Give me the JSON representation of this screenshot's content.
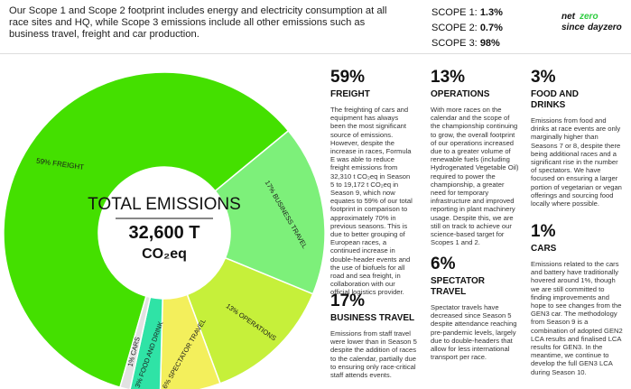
{
  "intro_text": "Our Scope 1 and Scope 2 footprint includes energy and electricity consumption at all race sites and HQ, while Scope 3 emissions include all other emissions such as business travel, freight and car production.",
  "scopes": [
    {
      "label": "SCOPE 1:",
      "value": "1.3%"
    },
    {
      "label": "SCOPE 2:",
      "value": "0.7%"
    },
    {
      "label": "SCOPE 3:",
      "value": "98%"
    }
  ],
  "logo": {
    "text": "net zero since day zero"
  },
  "chart_data": {
    "type": "pie",
    "title": "TOTAL EMISSIONS",
    "total": "32,600 T",
    "unit": "CO₂eq",
    "slices": [
      {
        "name": "FREIGHT",
        "label": "59% FREIGHT",
        "value": 59,
        "color": "#44e000"
      },
      {
        "name": "BUSINESS TRAVEL",
        "label": "17% BUSINESS TRAVEL",
        "value": 17,
        "color": "#7df07a"
      },
      {
        "name": "OPERATIONS",
        "label": "13% OPERATIONS",
        "value": 13,
        "color": "#c6f03a"
      },
      {
        "name": "SPECTATOR TRAVEL",
        "label": "6% SPECTATOR TRAVEL",
        "value": 6,
        "color": "#f3ef5c"
      },
      {
        "name": "FOOD AND DRINK",
        "label": "3% FOOD AND DRINK",
        "value": 3,
        "color": "#2fe3a6"
      },
      {
        "name": "CARS",
        "label": "1% CARS",
        "value": 1,
        "color": "#e2e2e2"
      }
    ]
  },
  "sections": {
    "freight": {
      "pct": "59%",
      "label": "FREIGHT",
      "body": "The freighting of cars and equipment has always been the most significant source of emissions. However, despite the increase in races, Formula E was able to reduce freight emissions from 32,310 t CO₂eq in Season 5 to 19,172 t CO₂eq in Season 9, which now equates to 59% of our total footprint in comparison to approximately 70% in previous seasons. This is due to better grouping of European races, a continued increase in double-header events and the use of biofuels for all road and sea freight, in collaboration with our official logistics provider."
    },
    "business_travel": {
      "pct": "17%",
      "label": "BUSINESS TRAVEL",
      "body": "Emissions from staff travel were lower than in Season 5 despite the addition of races to the calendar, partially due to ensuring only race-critical staff attends events."
    },
    "operations": {
      "pct": "13%",
      "label": "OPERATIONS",
      "body": "With more races on the calendar and the scope of the championship continuing to grow, the overall footprint of our operations increased due to a greater volume of renewable fuels (including Hydrogenated Vegetable Oil) required to power the championship, a greater need for temporary infrastructure and improved reporting in plant machinery usage. Despite this, we are still on track to achieve our science-based target for Scopes 1 and 2."
    },
    "spectator": {
      "pct": "6%",
      "label": "SPECTATOR TRAVEL",
      "body": "Spectator travels have decreased since Season 5 despite attendance reaching pre-pandemic levels, largely due to double-headers that allow for less international transport per race."
    },
    "food": {
      "pct": "3%",
      "label": "FOOD AND DRINKS",
      "body": "Emissions from food and drinks at race events are only marginally higher than Seasons 7 or 8, despite there being additional races and a significant rise in the number of spectators. We have focused on ensuring a larger portion of vegetarian or vegan offerings and sourcing food locally where possible."
    },
    "cars": {
      "pct": "1%",
      "label": "CARS",
      "body": "Emissions related to the cars and battery have traditionally hovered around 1%, though we are still committed to finding improvements and hope to see changes from the GEN3 car. The methodology from Season 9 is a combination of adopted GEN2 LCA results and finalised LCA results for GEN3. In the meantime, we continue to develop the full GEN3 LCA during Season 10."
    }
  }
}
